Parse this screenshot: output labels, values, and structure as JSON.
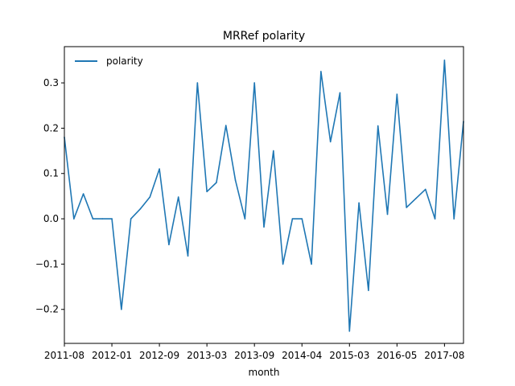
{
  "chart_data": {
    "type": "line",
    "title": "MRRef polarity",
    "xlabel": "month",
    "ylabel": "",
    "legend": {
      "placement": "top-left",
      "entries": [
        "polarity"
      ]
    },
    "grid": false,
    "ylim": [
      -0.275,
      0.38
    ],
    "yticks": [
      -0.2,
      -0.1,
      0.0,
      0.1,
      0.2,
      0.3
    ],
    "ytick_labels": [
      "−0.2",
      "−0.1",
      "0.0",
      "0.1",
      "0.2",
      "0.3"
    ],
    "xticks": [
      {
        "index": 0,
        "label": "2011-08"
      },
      {
        "index": 5,
        "label": "2012-01"
      },
      {
        "index": 10,
        "label": "2012-09"
      },
      {
        "index": 15,
        "label": "2013-03"
      },
      {
        "index": 20,
        "label": "2013-09"
      },
      {
        "index": 25,
        "label": "2014-04"
      },
      {
        "index": 30,
        "label": "2015-03"
      },
      {
        "index": 35,
        "label": "2016-05"
      },
      {
        "index": 40,
        "label": "2017-08"
      }
    ],
    "series": [
      {
        "name": "polarity",
        "color": "#1f77b4",
        "values": [
          0.18,
          0.0,
          0.055,
          0.0,
          0.0,
          0.0,
          -0.2,
          0.0,
          0.022,
          0.048,
          0.11,
          -0.057,
          0.048,
          -0.082,
          0.3,
          0.06,
          0.08,
          0.206,
          0.085,
          0.0,
          0.3,
          -0.018,
          0.15,
          -0.1,
          0.0,
          0.0,
          -0.1,
          0.325,
          0.17,
          0.278,
          -0.248,
          0.035,
          -0.158,
          0.205,
          0.01,
          0.275,
          0.025,
          0.045,
          0.065,
          0.0,
          0.35,
          0.0,
          0.215
        ]
      }
    ]
  }
}
